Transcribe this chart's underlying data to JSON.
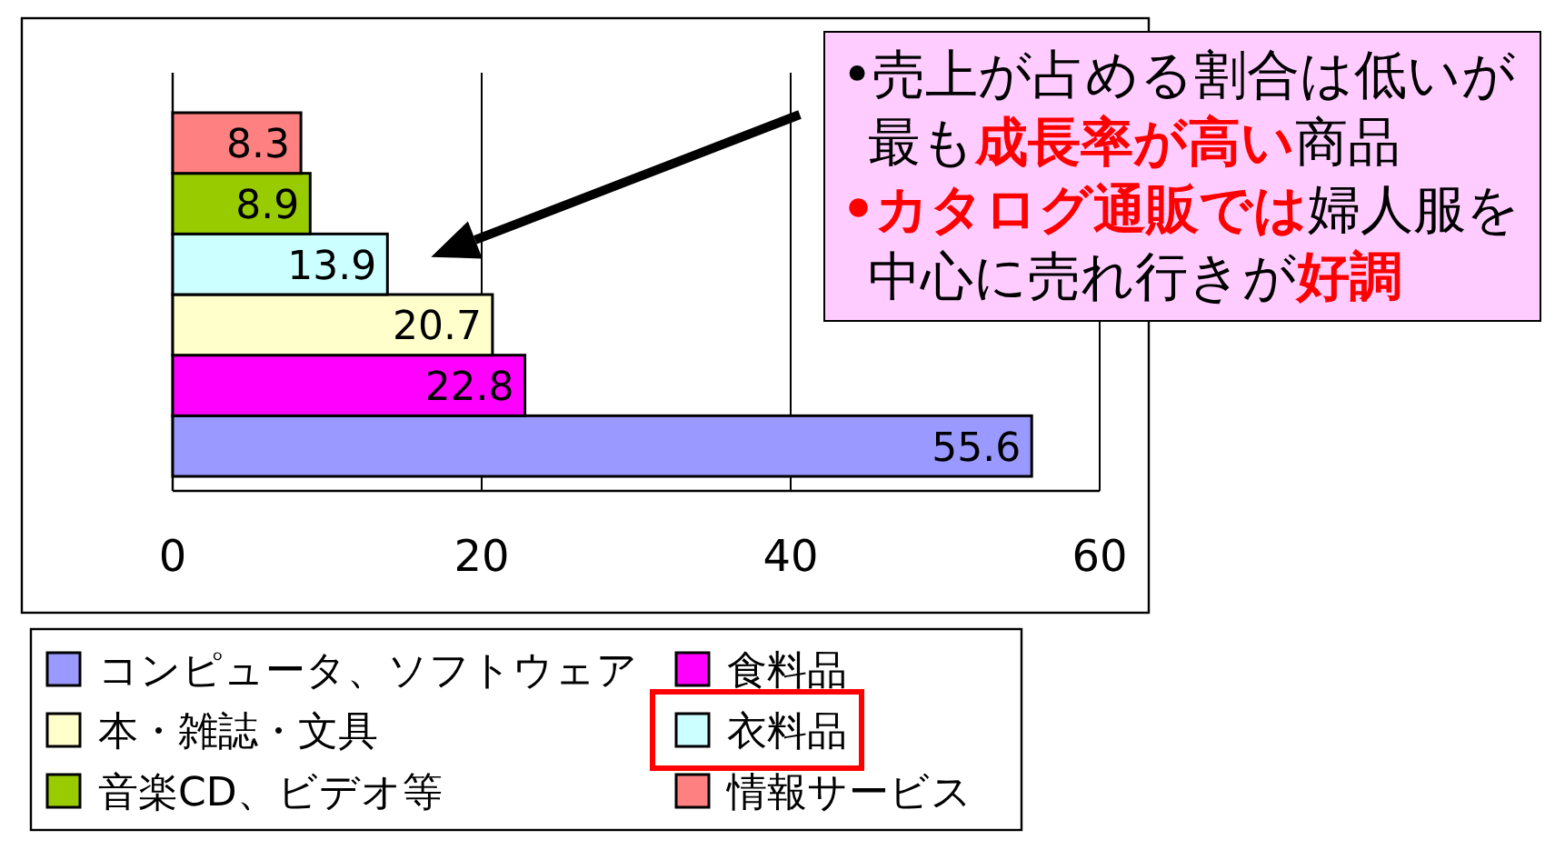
{
  "chart_data": {
    "type": "bar",
    "orientation": "horizontal",
    "categories": [
      null
    ],
    "series": [
      {
        "name": "コンピュータ、ソフトウェア",
        "color": "#9999ff",
        "values": [
          55.6
        ]
      },
      {
        "name": "食料品",
        "color": "#ff00ff",
        "values": [
          22.8
        ]
      },
      {
        "name": "本・雑誌・文具",
        "color": "#ffffcc",
        "values": [
          20.7
        ]
      },
      {
        "name": "衣料品",
        "color": "#ccffff",
        "values": [
          13.9
        ]
      },
      {
        "name": "音楽CD、ビデオ等",
        "color": "#99cc00",
        "values": [
          8.9
        ]
      },
      {
        "name": "情報サービス",
        "color": "#ff8080",
        "values": [
          8.3
        ]
      }
    ],
    "xlim": [
      0,
      60
    ],
    "xticks": [
      0,
      20,
      40,
      60
    ],
    "grid": "x",
    "data_labels": true,
    "legend": "bottom",
    "annotations": [
      "•売上が占める割合は低いが最も**成長率が高い**商品",
      "**•カタログ通販では**婦人服を中心に売れ行きが**好調**"
    ]
  }
}
